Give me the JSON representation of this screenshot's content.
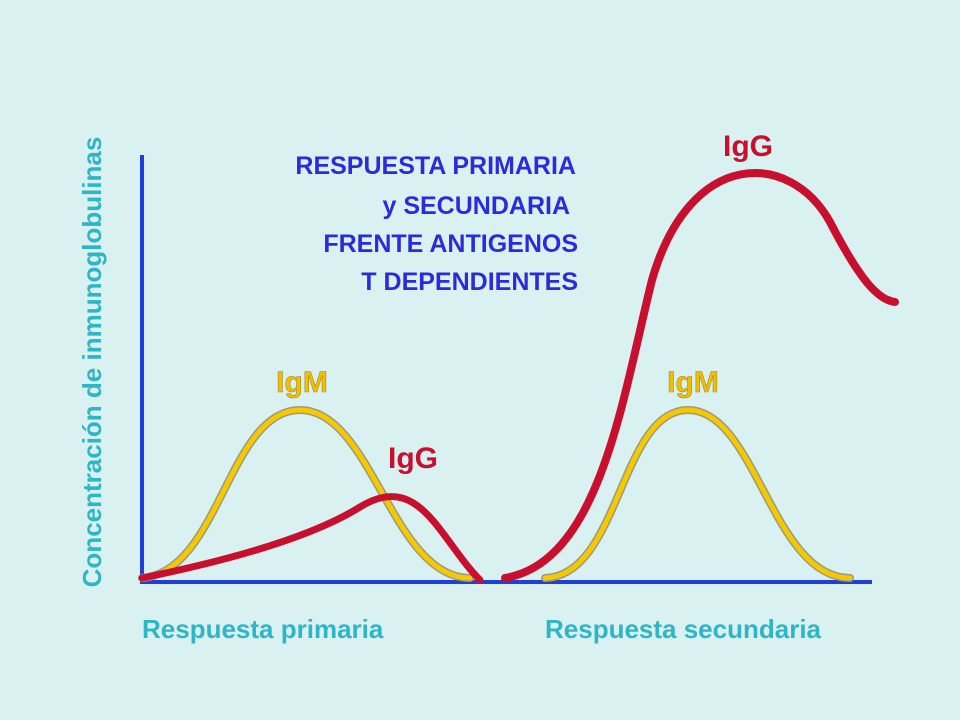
{
  "title": [
    "RESPUESTA PRIMARIA",
    "y SECUNDARIA",
    "FRENTE ANTIGENOS",
    "T DEPENDIENTES"
  ],
  "y_axis_label": "Concentración de inmunoglobulinas",
  "x_labels": [
    "Respuesta primaria",
    "Respuesta secundaria"
  ],
  "curve_labels": {
    "primary_igm": "IgM",
    "primary_igg": "IgG",
    "secondary_igm": "IgM",
    "secondary_igg": "IgG"
  }
}
